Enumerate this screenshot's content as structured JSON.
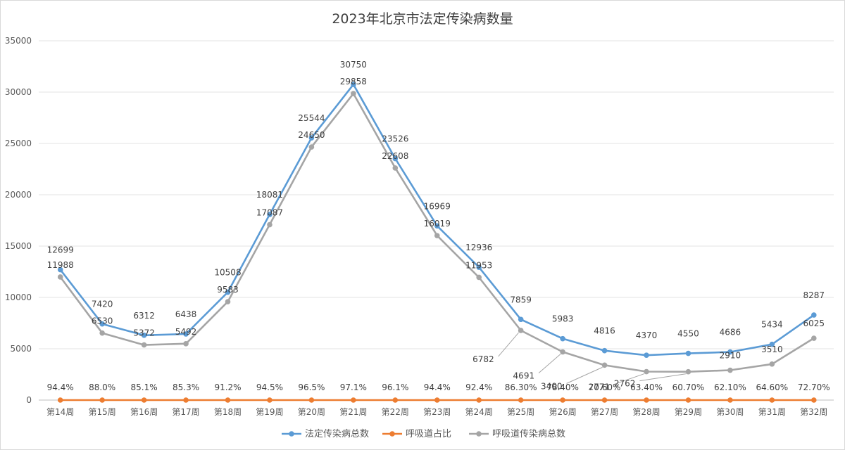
{
  "chart_data": {
    "type": "line",
    "title": "2023年北京市法定传染病数量",
    "xlabel": "",
    "ylabel": "",
    "categories": [
      "第14周",
      "第15周",
      "第16周",
      "第17周",
      "第18周",
      "第19周",
      "第20周",
      "第21周",
      "第22周",
      "第23周",
      "第24周",
      "第25周",
      "第26周",
      "第27周",
      "第28周",
      "第29周",
      "第30周",
      "第31周",
      "第32周"
    ],
    "ylim": [
      0,
      35000
    ],
    "yticks": [
      0,
      5000,
      10000,
      15000,
      20000,
      25000,
      30000,
      35000
    ],
    "grid": true,
    "legend_position": "bottom",
    "series": [
      {
        "name": "法定传染病总数",
        "color": "#5b9bd5",
        "values": [
          12699,
          7420,
          6312,
          6438,
          10508,
          18081,
          25544,
          30750,
          23526,
          16969,
          12936,
          7859,
          5983,
          4816,
          4370,
          4550,
          4686,
          5434,
          8287
        ]
      },
      {
        "name": "呼吸道占比",
        "color": "#ed7d31",
        "values": [
          0.944,
          0.88,
          0.851,
          0.853,
          0.912,
          0.945,
          0.965,
          0.971,
          0.961,
          0.944,
          0.924,
          0.863,
          0.784,
          0.706,
          0.634,
          0.607,
          0.621,
          0.646,
          0.727
        ],
        "labels": [
          "94.4%",
          "88.0%",
          "85.1%",
          "85.3%",
          "91.2%",
          "94.5%",
          "96.5%",
          "97.1%",
          "96.1%",
          "94.4%",
          "92.4%",
          "86.30%",
          "78.40%",
          "70.60%",
          "63.40%",
          "60.70%",
          "62.10%",
          "64.60%",
          "72.70%"
        ]
      },
      {
        "name": "呼吸道传染病总数",
        "color": "#a5a5a5",
        "values": [
          11988,
          6530,
          5372,
          5492,
          9583,
          17087,
          24650,
          29858,
          22608,
          16019,
          11953,
          6782,
          4691,
          3400,
          2771,
          2762,
          2910,
          3510,
          6025
        ]
      }
    ]
  }
}
